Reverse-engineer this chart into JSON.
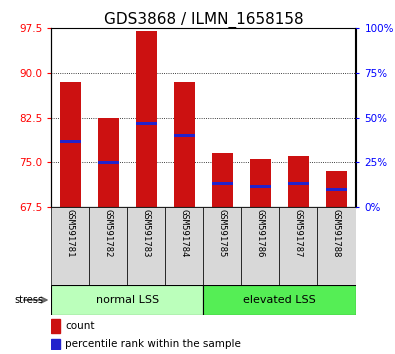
{
  "title": "GDS3868 / ILMN_1658158",
  "samples": [
    "GSM591781",
    "GSM591782",
    "GSM591783",
    "GSM591784",
    "GSM591785",
    "GSM591786",
    "GSM591787",
    "GSM591788"
  ],
  "bar_tops": [
    88.5,
    82.5,
    97.0,
    88.5,
    76.5,
    75.5,
    76.0,
    73.5
  ],
  "bar_bottom": 67.5,
  "blue_values": [
    78.5,
    75.0,
    81.5,
    79.5,
    71.5,
    71.0,
    71.5,
    70.5
  ],
  "bar_color": "#cc1111",
  "blue_color": "#2222cc",
  "ylim_left": [
    67.5,
    97.5
  ],
  "yticks_left": [
    67.5,
    75.0,
    82.5,
    90.0,
    97.5
  ],
  "ylim_right": [
    0,
    100
  ],
  "yticks_right": [
    0,
    25,
    50,
    75,
    100
  ],
  "ytick_labels_right": [
    "0%",
    "25%",
    "50%",
    "75%",
    "100%"
  ],
  "group1_label": "normal LSS",
  "group2_label": "elevated LSS",
  "group1_count": 4,
  "group2_count": 4,
  "stress_label": "stress",
  "legend_count": "count",
  "legend_pct": "percentile rank within the sample",
  "group1_color": "#bbffbb",
  "group2_color": "#55ee55",
  "bar_width": 0.55,
  "title_fontsize": 11,
  "sample_fontsize": 6.5,
  "group_fontsize": 8,
  "legend_fontsize": 7.5
}
